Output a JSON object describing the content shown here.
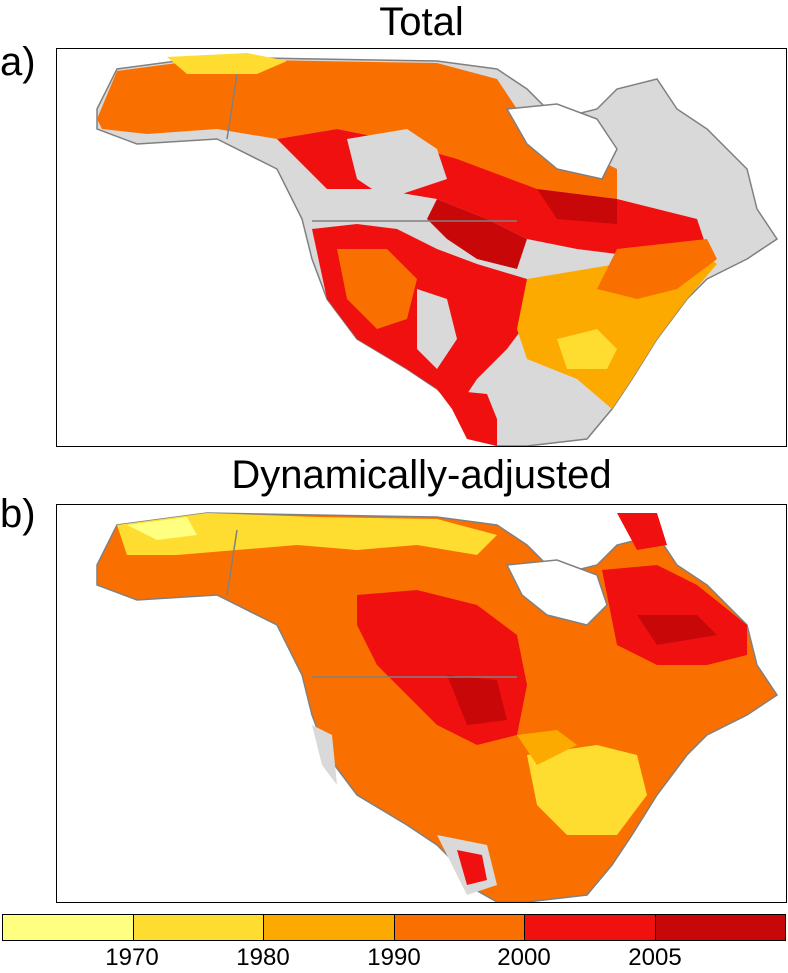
{
  "panels": [
    {
      "label": "a)",
      "title": "Total"
    },
    {
      "label": "b)",
      "title": "Dynamically-adjusted"
    }
  ],
  "colorbar": {
    "colors": [
      "#ffff80",
      "#fedc30",
      "#fdaa00",
      "#fa7000",
      "#f01010",
      "#c80808"
    ],
    "tick_labels": [
      "1970",
      "1980",
      "1990",
      "2000",
      "2005"
    ]
  },
  "colors": {
    "land_no_data": "#d9d9d9",
    "coastline": "#808080",
    "ocean": "#ffffff"
  }
}
